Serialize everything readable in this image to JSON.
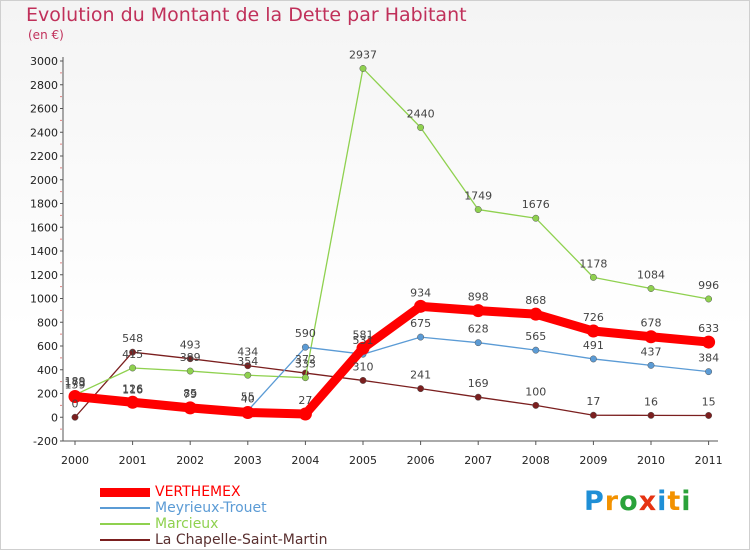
{
  "header": {
    "title": "Evolution du Montant de la Dette par Habitant",
    "subtitle": "(en €)"
  },
  "chart_data": {
    "type": "line",
    "title": "Evolution du Montant de la Dette par Habitant",
    "subtitle": "(en €)",
    "xlabel": "",
    "ylabel": "",
    "x": [
      "2000",
      "2001",
      "2002",
      "2003",
      "2004",
      "2005",
      "2006",
      "2007",
      "2008",
      "2009",
      "2010",
      "2011"
    ],
    "ylim": [
      -200,
      3000
    ],
    "yticks": [
      -200,
      0,
      200,
      400,
      600,
      800,
      1000,
      1200,
      1400,
      1600,
      1800,
      2000,
      2200,
      2400,
      2600,
      2800,
      3000
    ],
    "grid": false,
    "legend": "bottom-left",
    "series": [
      {
        "name": "VERTHEMEX",
        "color": "#ff0000",
        "values": [
          175,
          126,
          79,
          40,
          27,
          581,
          934,
          898,
          868,
          726,
          678,
          633
        ],
        "labels": [
          "175",
          "126",
          "79",
          "40",
          "27",
          "581",
          "934",
          "898",
          "868",
          "726",
          "678",
          "633"
        ]
      },
      {
        "name": "Meyrieux-Trouet",
        "color": "#5b9bd5",
        "values": [
          159,
          116,
          85,
          55,
          590,
          531,
          675,
          628,
          565,
          491,
          437,
          384
        ],
        "labels": [
          "159",
          "116",
          "85",
          "55",
          "590",
          "531",
          "675",
          "628",
          "565",
          "491",
          "437",
          "384"
        ]
      },
      {
        "name": "Marcieux",
        "color": "#8fd14f",
        "values": [
          189,
          415,
          389,
          354,
          333,
          2937,
          2440,
          1749,
          1676,
          1178,
          1084,
          996
        ],
        "labels": [
          "189",
          "415",
          "389",
          "354",
          "333",
          "2937",
          "2440",
          "1749",
          "1676",
          "1178",
          "1084",
          "996"
        ]
      },
      {
        "name": "La Chapelle-Saint-Martin",
        "color": "#7b1f1f",
        "values": [
          0,
          548,
          493,
          434,
          372,
          310,
          241,
          169,
          100,
          17,
          16,
          15
        ],
        "labels": [
          "0",
          "548",
          "493",
          "434",
          "372",
          "310",
          "241",
          "169",
          "100",
          "17",
          "16",
          "15"
        ]
      }
    ]
  },
  "logo": {
    "letters": [
      "P",
      "r",
      "o",
      "x",
      "i",
      "t",
      "i"
    ],
    "colors": [
      "#1f8fd6",
      "#f39200",
      "#2aa23a",
      "#e63312",
      "#1f8fd6",
      "#f39200",
      "#2aa23a"
    ]
  }
}
